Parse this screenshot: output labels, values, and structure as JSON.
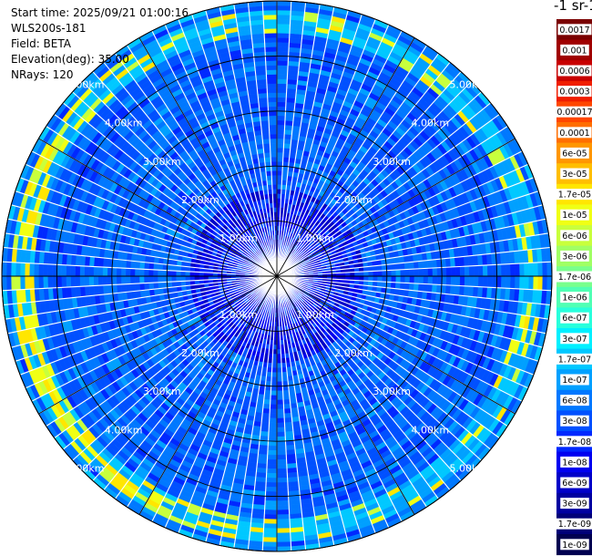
{
  "header": {
    "start_time": "Start time: 2025/09/21 01:00:16",
    "instrument": "WLS200s-181",
    "field": "Field: BETA",
    "elevation": "Elevation(deg): 35.00",
    "nrays": "NRays: 120"
  },
  "colorbar": {
    "units_label": "-1 sr-1",
    "labels": [
      "0.0017",
      "0.001",
      "0.0006",
      "0.0003",
      "0.00017",
      "0.0001",
      "6e-05",
      "3e-05",
      "1.7e-05",
      "1e-05",
      "6e-06",
      "3e-06",
      "1.7e-06",
      "1e-06",
      "6e-07",
      "3e-07",
      "1.7e-07",
      "1e-07",
      "6e-08",
      "3e-08",
      "1.7e-08",
      "1e-08",
      "6e-09",
      "3e-09",
      "1.7e-09",
      "1e-09"
    ],
    "colors": [
      "#7a0000",
      "#a00000",
      "#c80000",
      "#f01e00",
      "#ff4600",
      "#ff6e00",
      "#ff9600",
      "#ffbe00",
      "#ffe600",
      "#f0ff14",
      "#c8ff3c",
      "#a0ff64",
      "#78ff8c",
      "#50ffb4",
      "#28ffdc",
      "#00f0ff",
      "#00c8ff",
      "#00a0ff",
      "#0078ff",
      "#0050ff",
      "#0028ff",
      "#0000f0",
      "#0000c8",
      "#0000a0",
      "#000078",
      "#000050"
    ]
  },
  "chart_data": {
    "type": "heatmap",
    "projection": "polar PPI",
    "field": "BETA",
    "elevation_deg": 35.0,
    "nrays": 120,
    "max_range_km": 5.0,
    "range_ring_labels": [
      "1.00km",
      "2.00km",
      "3.00km",
      "4.00km",
      "5.00km"
    ],
    "range_rings_km": [
      1.0,
      2.0,
      3.0,
      4.0,
      5.0
    ],
    "spoke_interval_deg": 30,
    "background_level": "3e-08",
    "enhanced_band": {
      "range_km": [
        4.45,
        4.85
      ],
      "level": "1e-05"
    },
    "colorscale": "jet, logarithmic",
    "grid": true,
    "legend_position": "right"
  }
}
